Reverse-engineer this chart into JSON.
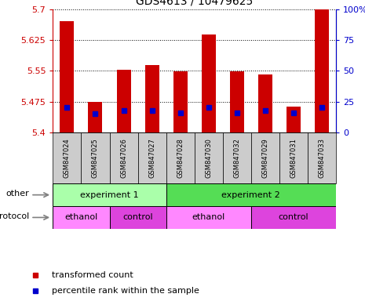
{
  "title": "GDS4613 / 10479625",
  "samples": [
    "GSM847024",
    "GSM847025",
    "GSM847026",
    "GSM847027",
    "GSM847028",
    "GSM847030",
    "GSM847032",
    "GSM847029",
    "GSM847031",
    "GSM847033"
  ],
  "transformed_counts": [
    5.67,
    5.475,
    5.553,
    5.563,
    5.549,
    5.638,
    5.549,
    5.54,
    5.463,
    5.7
  ],
  "percentile_ranks": [
    20,
    15,
    18,
    18,
    16,
    20,
    16,
    18,
    16,
    20
  ],
  "base_value": 5.4,
  "ylim": [
    5.4,
    5.7
  ],
  "yticks": [
    5.4,
    5.475,
    5.55,
    5.625,
    5.7
  ],
  "ytick_labels": [
    "5.4",
    "5.475",
    "5.55",
    "5.625",
    "5.7"
  ],
  "right_yticks": [
    0,
    25,
    50,
    75,
    100
  ],
  "right_ytick_labels": [
    "0",
    "25",
    "50",
    "75",
    "100%"
  ],
  "bar_color": "#cc0000",
  "percentile_color": "#0000cc",
  "left_axis_color": "#cc0000",
  "right_axis_color": "#0000cc",
  "grid_color": "#000000",
  "sample_bg_color": "#cccccc",
  "groups_other": [
    {
      "label": "experiment 1",
      "start": 0,
      "end": 4,
      "color": "#aaffaa"
    },
    {
      "label": "experiment 2",
      "start": 4,
      "end": 10,
      "color": "#55dd55"
    }
  ],
  "groups_protocol": [
    {
      "label": "ethanol",
      "start": 0,
      "end": 2,
      "color": "#ff88ff"
    },
    {
      "label": "control",
      "start": 2,
      "end": 4,
      "color": "#dd44dd"
    },
    {
      "label": "ethanol",
      "start": 4,
      "end": 7,
      "color": "#ff88ff"
    },
    {
      "label": "control",
      "start": 7,
      "end": 10,
      "color": "#dd44dd"
    }
  ],
  "legend_items": [
    {
      "label": "transformed count",
      "color": "#cc0000"
    },
    {
      "label": "percentile rank within the sample",
      "color": "#0000cc"
    }
  ],
  "bar_width": 0.5,
  "figsize": [
    4.65,
    3.84
  ],
  "dpi": 100
}
